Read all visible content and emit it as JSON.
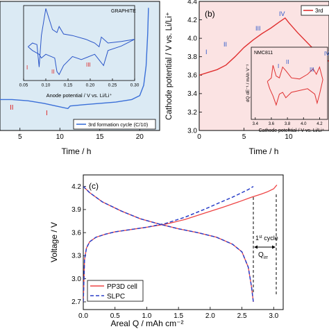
{
  "chart_data": [
    {
      "panel": "(a)",
      "type": "line",
      "xlabel": "Time / h",
      "ylabel": "",
      "xticks": [
        "5",
        "10",
        "15",
        "20"
      ],
      "xlim": [
        2.5,
        22.5
      ],
      "ylim": [
        0,
        1
      ],
      "legend": "3rd formation cycle (C/10)",
      "region_labels": [
        "II",
        "I"
      ],
      "series": [
        {
          "name": "3rd formation cycle (C/10)",
          "x": [
            2.5,
            4,
            6,
            8,
            9.5,
            11,
            11.3,
            13,
            15,
            17,
            19,
            20,
            20.5,
            20.8,
            21,
            21.1
          ],
          "y": [
            0.24,
            0.24,
            0.23,
            0.21,
            0.19,
            0.17,
            0.19,
            0.2,
            0.21,
            0.22,
            0.24,
            0.27,
            0.35,
            0.5,
            0.75,
            0.95
          ]
        }
      ],
      "inset": {
        "title": "GRAPHITE",
        "xlabel": "Anode potential / V vs. Li/Li⁺",
        "xticks": [
          "0.05",
          "0.10",
          "0.15",
          "0.20",
          "0.25",
          "0.30"
        ],
        "xlim": [
          0.05,
          0.3
        ],
        "ylim": [
          0,
          1
        ],
        "labels": [
          "I",
          "II",
          "III"
        ],
        "series": [
          {
            "name": "anode",
            "x": [
              0.06,
              0.07,
              0.08,
              0.085,
              0.09,
              0.1,
              0.115,
              0.125,
              0.13,
              0.14,
              0.16,
              0.19,
              0.21,
              0.22,
              0.225,
              0.24,
              0.27,
              0.3,
              0.27,
              0.24,
              0.23,
              0.21,
              0.18,
              0.16,
              0.14,
              0.13,
              0.125,
              0.12,
              0.1,
              0.09,
              0.085,
              0.07,
              0.06
            ],
            "y": [
              0.45,
              0.5,
              0.48,
              0.18,
              0.6,
              0.96,
              0.68,
              0.64,
              0.72,
              0.62,
              0.6,
              0.55,
              0.5,
              0.45,
              0.58,
              0.5,
              0.52,
              0.55,
              0.46,
              0.4,
              0.2,
              0.35,
              0.28,
              0.32,
              0.2,
              0.08,
              0.12,
              0.3,
              0.35,
              0.3,
              0.35,
              0.4,
              0.45
            ]
          }
        ]
      }
    },
    {
      "panel": "(b)",
      "type": "line",
      "xlabel": "Time / h",
      "ylabel": "Cathode potential / V vs. Li/Li⁺",
      "xticks": [
        "0",
        "5",
        "10"
      ],
      "yticks": [
        "3.0",
        "3.2",
        "3.4",
        "3.6",
        "3.8",
        "4.0",
        "4.2",
        "4.4"
      ],
      "xlim": [
        0,
        14.5
      ],
      "ylim": [
        3.0,
        4.4
      ],
      "legend": "3rd",
      "region_labels": [
        "I",
        "II",
        "III",
        "IV"
      ],
      "series": [
        {
          "name": "3rd",
          "x": [
            0,
            1,
            2,
            3,
            4,
            5,
            6,
            7,
            8,
            9,
            9.6,
            10,
            11,
            12,
            13,
            14,
            14.5
          ],
          "y": [
            3.6,
            3.63,
            3.66,
            3.71,
            3.8,
            3.9,
            3.98,
            4.05,
            4.11,
            4.18,
            4.22,
            4.17,
            4.06,
            3.96,
            3.86,
            3.78,
            3.75
          ]
        }
      ],
      "inset": {
        "title": "NMC811",
        "xlabel": "Cathode potential / V vs. Li/Li⁺",
        "ylabel": "dQ dE⁻¹ / mAh V⁻¹",
        "xticks": [
          "3.4",
          "3.6",
          "3.8",
          "4.0",
          "4.2"
        ],
        "xlim": [
          3.35,
          4.3
        ],
        "ylim": [
          -1,
          1
        ],
        "labels": [
          "I",
          "II",
          "III",
          "IV"
        ],
        "series": [
          {
            "name": "cathode",
            "x": [
              3.55,
              3.6,
              3.62,
              3.66,
              3.7,
              3.74,
              3.78,
              3.85,
              3.95,
              4.05,
              4.12,
              4.16,
              4.2,
              4.24,
              4.2,
              4.17,
              4.14,
              4.05,
              3.95,
              3.85,
              3.78,
              3.74,
              3.7,
              3.66,
              3.62,
              3.58,
              3.55
            ],
            "y": [
              0.05,
              0.15,
              0.5,
              0.2,
              0.15,
              0.45,
              0.35,
              0.15,
              0.12,
              0.25,
              0.4,
              0.25,
              0.45,
              0.1,
              -0.3,
              -0.55,
              -0.3,
              -0.15,
              -0.2,
              -0.25,
              -0.4,
              -0.25,
              -0.3,
              -0.6,
              -0.35,
              -0.15,
              0.05
            ]
          }
        ]
      }
    },
    {
      "panel": "(c)",
      "type": "line",
      "xlabel": "Areal Q / mAh cm⁻²",
      "ylabel": "Voltage / V",
      "xticks": [
        "0.0",
        "0.5",
        "1.0",
        "1.5",
        "2.0",
        "2.5",
        "3.0"
      ],
      "yticks": [
        "2.7",
        "3.0",
        "3.3",
        "3.6",
        "3.9",
        "4.2"
      ],
      "xlim": [
        0,
        3.15
      ],
      "ylim": [
        2.6,
        4.35
      ],
      "legend": [
        "PP3D cell",
        "SLPC"
      ],
      "annotation_line1": "1",
      "annotation_line1_sup": "st",
      "annotation_line1_rest": " cycle",
      "annotation_line2": "Q",
      "annotation_line2_sub": "irr",
      "series": [
        {
          "name": "PP3D cell",
          "charge": {
            "x": [
              0,
              0.02,
              0.05,
              0.1,
              0.2,
              0.35,
              0.5,
              0.75,
              1.0,
              1.3,
              1.6,
              1.9,
              2.2,
              2.45,
              2.65,
              2.8,
              2.9,
              3.0,
              3.05
            ],
            "y": [
              2.7,
              3.25,
              3.4,
              3.48,
              3.54,
              3.58,
              3.61,
              3.64,
              3.67,
              3.71,
              3.77,
              3.85,
              3.93,
              4.0,
              4.06,
              4.1,
              4.13,
              4.17,
              4.22
            ]
          },
          "discharge": {
            "x": [
              0,
              0.1,
              0.3,
              0.6,
              0.9,
              1.2,
              1.5,
              1.8,
              2.1,
              2.35,
              2.5,
              2.6,
              2.65,
              2.68
            ],
            "y": [
              4.2,
              4.12,
              4.0,
              3.88,
              3.78,
              3.71,
              3.65,
              3.6,
              3.54,
              3.45,
              3.35,
              3.15,
              2.9,
              2.7
            ]
          }
        },
        {
          "name": "SLPC",
          "charge": {
            "x": [
              0,
              0.02,
              0.05,
              0.1,
              0.2,
              0.35,
              0.5,
              0.75,
              1.0,
              1.3,
              1.6,
              1.9,
              2.15,
              2.35,
              2.5,
              2.6,
              2.68
            ],
            "y": [
              2.7,
              3.25,
              3.4,
              3.48,
              3.54,
              3.58,
              3.61,
              3.64,
              3.67,
              3.72,
              3.8,
              3.9,
              3.99,
              4.06,
              4.12,
              4.16,
              4.2
            ]
          },
          "discharge": {
            "x": [
              0,
              0.1,
              0.3,
              0.6,
              0.9,
              1.2,
              1.5,
              1.8,
              2.1,
              2.35,
              2.5,
              2.6,
              2.65,
              2.68
            ],
            "y": [
              4.2,
              4.12,
              4.0,
              3.88,
              3.78,
              3.71,
              3.65,
              3.6,
              3.54,
              3.45,
              3.35,
              3.15,
              2.9,
              2.7
            ]
          }
        }
      ]
    }
  ]
}
